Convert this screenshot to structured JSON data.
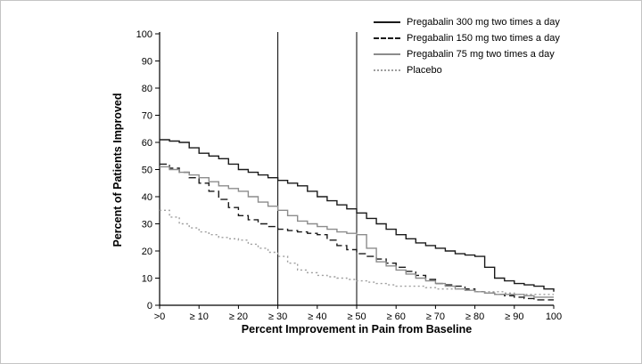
{
  "chart_data": {
    "type": "line",
    "title": "",
    "xlabel": "Percent Improvement in Pain from Baseline",
    "ylabel": "Percent of Patients Improved",
    "xlim": [
      0,
      100
    ],
    "ylim": [
      0,
      100
    ],
    "grid": false,
    "legend_position": "top-right",
    "x_tick_positions": [
      0,
      10,
      20,
      30,
      40,
      50,
      60,
      70,
      80,
      90,
      100
    ],
    "x_tick_labels": [
      ">0",
      "≥ 10",
      "≥ 20",
      "≥ 30",
      "≥ 40",
      "≥ 50",
      "≥ 60",
      "≥ 70",
      "≥ 80",
      "≥ 90",
      "100"
    ],
    "y_ticks": [
      0,
      10,
      20,
      30,
      40,
      50,
      60,
      70,
      80,
      90,
      100
    ],
    "reference_lines_x": [
      30,
      50
    ],
    "x_values": [
      0,
      5,
      10,
      15,
      20,
      25,
      30,
      35,
      40,
      45,
      50,
      55,
      60,
      65,
      70,
      75,
      80,
      85,
      90,
      95,
      100
    ],
    "series": [
      {
        "name": "Pregabalin 300 mg two times a day",
        "line_style": "solid",
        "color": "#1a1a1a",
        "values": [
          61,
          60,
          56,
          54,
          50,
          48,
          46,
          44,
          40,
          37,
          34,
          30,
          26,
          23,
          21,
          19,
          18,
          10,
          8,
          7,
          5
        ]
      },
      {
        "name": "Pregabalin 150 mg two times a day",
        "line_style": "dashed",
        "color": "#1a1a1a",
        "values": [
          52,
          49,
          45,
          39,
          33,
          30,
          28,
          27,
          26,
          22,
          19,
          17,
          14,
          11,
          8,
          7,
          5,
          4,
          3,
          2,
          2
        ]
      },
      {
        "name": "Pregabalin 75 mg two times a day",
        "line_style": "solid",
        "color": "#8c8c8c",
        "values": [
          51,
          49,
          47,
          44,
          42,
          38,
          35,
          31,
          29,
          27,
          26,
          16,
          13,
          10,
          8,
          6,
          5,
          4,
          4,
          3,
          3
        ]
      },
      {
        "name": "Placebo",
        "line_style": "dotted",
        "color": "#9e9e9e",
        "values": [
          35,
          30,
          27,
          25,
          24,
          21,
          18,
          13,
          11,
          10,
          9,
          8,
          7,
          7,
          6,
          6,
          5,
          5,
          4,
          4,
          4
        ]
      }
    ]
  }
}
